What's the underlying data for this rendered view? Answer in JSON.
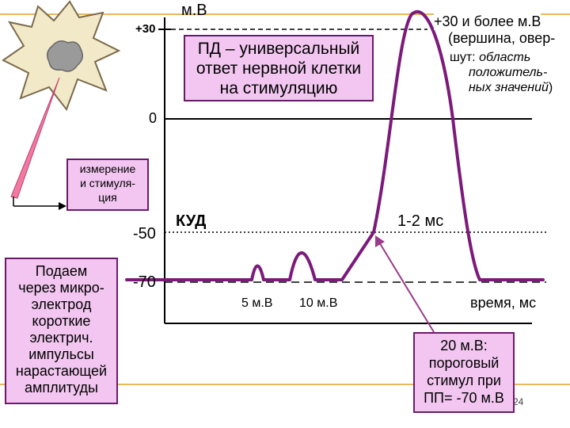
{
  "unit_label": "м.В",
  "axis_ticks": {
    "plus30": "+30",
    "zero": "0",
    "minus50": "-50",
    "minus70": "-70"
  },
  "stimulus_box": {
    "lines": [
      "ПД – универсальный",
      "ответ нервной клетки",
      "на стимуляцию"
    ]
  },
  "peak_note": {
    "line1": "+30 и более м.В",
    "line2": "(вершина, овер-",
    "line3a": "шут: ",
    "line3b": "область",
    "line4": "положитель-",
    "line5a": "ных значений",
    "line5b": ")"
  },
  "measure_box": {
    "lines": [
      "измерение",
      "и стимуля-",
      "ция"
    ]
  },
  "kud_label": "КУД",
  "duration_label": "1-2 мс",
  "impulse_box": {
    "lines": [
      "Подаем",
      "через микро-",
      "электрод",
      "короткие",
      "электрич.",
      "импульсы",
      "нарастающей",
      "амплитуды"
    ]
  },
  "stim_labels": {
    "small": "5 м.В",
    "medium": "10 м.В"
  },
  "time_label": "время, мс",
  "threshold_box": {
    "lines": [
      "20 м.В:",
      "пороговый",
      "стимул при",
      "ПП= -70 м.В"
    ]
  },
  "page_number": "24",
  "colors": {
    "trace": "#7b1a7b",
    "box_fill": "#f2c6f0",
    "box_border": "#6b1a6b",
    "guide": "#e0a020",
    "pointer": "#f07aa0",
    "cell_fill": "#f2e9c8",
    "arrow": "#c04070"
  },
  "icons": {
    "neuron": "neuron-cell-icon",
    "electrode": "microelectrode-icon"
  }
}
